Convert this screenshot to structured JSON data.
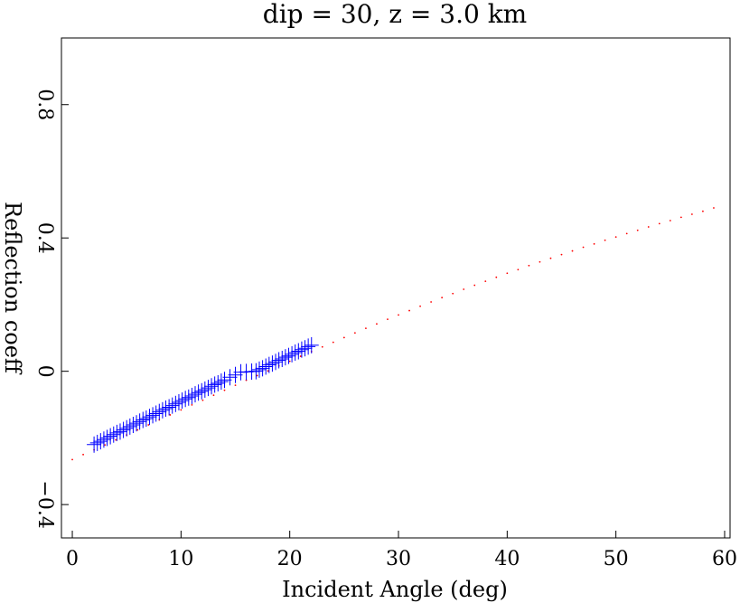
{
  "chart_data": {
    "type": "scatter",
    "title": "dip = 30, z = 3.0 km",
    "xlabel": "Incident Angle (deg)",
    "ylabel": "Reflection coeff",
    "xlim": [
      -1,
      60.5
    ],
    "ylim": [
      -0.5,
      1.0
    ],
    "xticks": [
      0,
      10,
      20,
      30,
      40,
      50,
      60
    ],
    "xtick_labels": [
      "0",
      "10",
      "20",
      "30",
      "40",
      "50",
      "60"
    ],
    "yticks": [
      -0.4,
      0,
      0.4,
      0.8
    ],
    "ytick_labels": [
      "−0.4",
      "0",
      "0.4",
      "0.8"
    ],
    "grid": false,
    "series": [
      {
        "marker": "dot",
        "color": "#ff0000",
        "x": [
          0,
          1,
          2,
          3,
          4,
          5,
          6,
          7,
          8,
          9,
          10,
          11,
          12,
          13,
          14,
          15,
          16,
          17,
          18,
          19,
          20,
          21,
          22,
          23,
          24,
          25,
          26,
          27,
          28,
          29,
          30,
          31,
          32,
          33,
          34,
          35,
          36,
          37,
          38,
          39,
          40,
          41,
          42,
          43,
          44,
          45,
          46,
          47,
          48,
          49,
          50,
          51,
          52,
          53,
          54,
          55,
          56,
          57,
          58,
          59
        ],
        "y": [
          -0.265,
          -0.25,
          -0.236,
          -0.221,
          -0.206,
          -0.191,
          -0.176,
          -0.161,
          -0.146,
          -0.131,
          -0.116,
          -0.101,
          -0.087,
          -0.072,
          -0.057,
          -0.042,
          -0.027,
          -0.013,
          0.001,
          0.016,
          0.03,
          0.045,
          0.059,
          0.073,
          0.087,
          0.101,
          0.115,
          0.129,
          0.142,
          0.156,
          0.169,
          0.182,
          0.195,
          0.208,
          0.221,
          0.233,
          0.246,
          0.258,
          0.27,
          0.282,
          0.294,
          0.305,
          0.317,
          0.328,
          0.339,
          0.35,
          0.361,
          0.372,
          0.382,
          0.393,
          0.403,
          0.413,
          0.423,
          0.433,
          0.443,
          0.452,
          0.462,
          0.471,
          0.48,
          0.49
        ]
      },
      {
        "marker": "plus",
        "color": "#0000ff",
        "x": [
          2.0,
          2.3,
          2.6,
          2.9,
          3.2,
          3.5,
          3.8,
          4.1,
          4.4,
          4.7,
          5.0,
          5.3,
          5.6,
          5.9,
          6.2,
          6.5,
          6.8,
          7.1,
          7.4,
          7.7,
          8.0,
          8.3,
          8.6,
          8.9,
          9.2,
          9.5,
          9.8,
          10.1,
          10.4,
          10.7,
          11.0,
          11.3,
          11.6,
          11.9,
          12.2,
          12.5,
          12.8,
          13.1,
          13.4,
          13.7,
          14.0,
          14.5,
          15.0,
          15.5,
          16.0,
          16.5,
          16.9,
          17.2,
          17.5,
          17.8,
          18.1,
          18.4,
          18.7,
          19.0,
          19.3,
          19.6,
          19.9,
          20.2,
          20.5,
          20.8,
          21.1,
          21.4,
          21.7,
          22.0
        ],
        "y": [
          -0.22,
          -0.215,
          -0.21,
          -0.205,
          -0.2,
          -0.195,
          -0.19,
          -0.185,
          -0.181,
          -0.176,
          -0.171,
          -0.166,
          -0.161,
          -0.156,
          -0.151,
          -0.146,
          -0.142,
          -0.137,
          -0.132,
          -0.127,
          -0.122,
          -0.117,
          -0.112,
          -0.108,
          -0.103,
          -0.098,
          -0.093,
          -0.088,
          -0.083,
          -0.079,
          -0.074,
          -0.069,
          -0.064,
          -0.06,
          -0.055,
          -0.05,
          -0.045,
          -0.04,
          -0.036,
          -0.031,
          -0.026,
          -0.018,
          -0.011,
          -0.003,
          -0.002,
          -0.001,
          0.0,
          0.005,
          0.009,
          0.014,
          0.019,
          0.023,
          0.028,
          0.033,
          0.037,
          0.042,
          0.046,
          0.051,
          0.056,
          0.06,
          0.065,
          0.069,
          0.074,
          0.078
        ]
      }
    ]
  }
}
